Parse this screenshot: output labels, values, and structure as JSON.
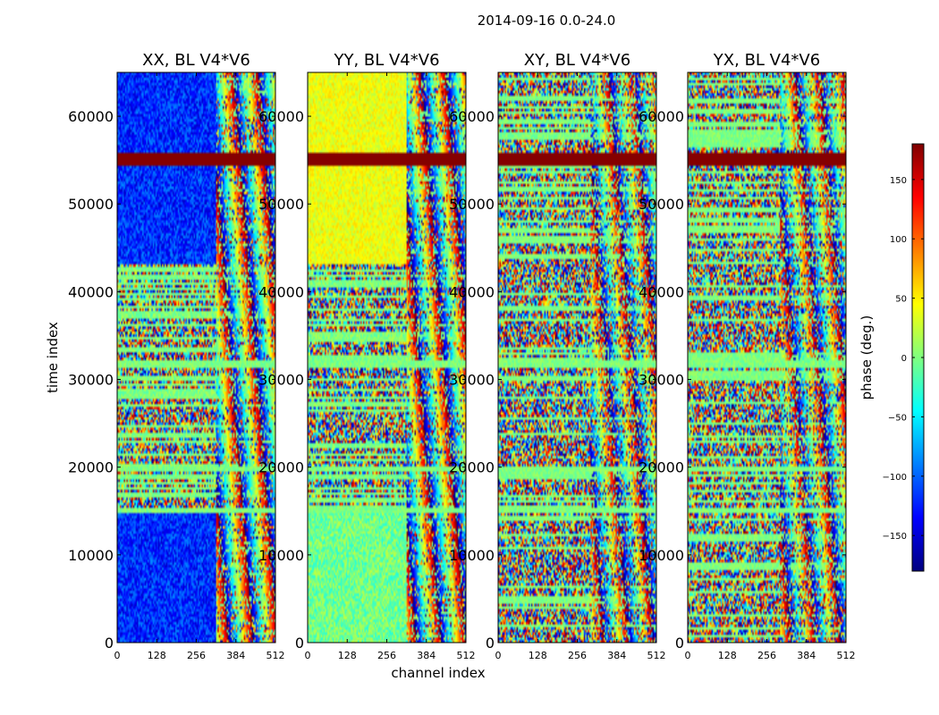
{
  "figure_title": "2014-09-16 0.0-24.0",
  "shared_xlabel": "channel index",
  "shared_ylabel": "time index",
  "colorbar": {
    "label": "phase (deg.)",
    "range": [
      -180,
      180
    ],
    "ticks": [
      150,
      100,
      50,
      0,
      -50,
      -100,
      -150
    ],
    "tick_labels": [
      "150",
      "100",
      "50",
      "0",
      "−50",
      "−100",
      "−150"
    ],
    "colormap": [
      "#00007f",
      "#0000ff",
      "#007fff",
      "#00ffff",
      "#7fff7f",
      "#ffff00",
      "#ff7f00",
      "#ff0000",
      "#7f0000"
    ]
  },
  "chart_data": [
    {
      "type": "heatmap",
      "title": "XX, BL V4*V6",
      "xlabel": "channel index",
      "ylabel": "time index",
      "xlim": [
        0,
        512
      ],
      "ylim": [
        0,
        65000
      ],
      "xticks": [
        0,
        128,
        256,
        384,
        512
      ],
      "xtick_labels": [
        "0",
        "128",
        "256",
        "384",
        "512"
      ],
      "yticks": [
        0,
        10000,
        20000,
        30000,
        40000,
        50000,
        60000
      ],
      "ytick_labels": [
        "0",
        "10000",
        "20000",
        "30000",
        "40000",
        "50000",
        "60000"
      ],
      "value_label": "phase (deg.)",
      "dominant_phase": -120,
      "pattern": "strong-negative-low-channels"
    },
    {
      "type": "heatmap",
      "title": "YY, BL V4*V6",
      "xlabel": "channel index",
      "ylabel": "time index",
      "xlim": [
        0,
        512
      ],
      "ylim": [
        0,
        65000
      ],
      "xticks": [
        0,
        128,
        256,
        384,
        512
      ],
      "xtick_labels": [
        "0",
        "128",
        "256",
        "384",
        "512"
      ],
      "yticks": [
        0,
        10000,
        20000,
        30000,
        40000,
        50000,
        60000
      ],
      "ytick_labels": [
        "0",
        "10000",
        "20000",
        "30000",
        "40000",
        "50000",
        "60000"
      ],
      "value_label": "phase (deg.)",
      "dominant_phase": 40,
      "pattern": "positive-upper-band"
    },
    {
      "type": "heatmap",
      "title": "XY, BL V4*V6",
      "xlabel": "channel index",
      "ylabel": "time index",
      "xlim": [
        0,
        512
      ],
      "ylim": [
        0,
        65000
      ],
      "xticks": [
        0,
        128,
        256,
        384,
        512
      ],
      "xtick_labels": [
        "0",
        "128",
        "256",
        "384",
        "512"
      ],
      "yticks": [
        0,
        10000,
        20000,
        30000,
        40000,
        50000,
        60000
      ],
      "ytick_labels": [
        "0",
        "10000",
        "20000",
        "30000",
        "40000",
        "50000",
        "60000"
      ],
      "value_label": "phase (deg.)",
      "dominant_phase": 0,
      "pattern": "noise"
    },
    {
      "type": "heatmap",
      "title": "YX, BL V4*V6",
      "xlabel": "channel index",
      "ylabel": "time index",
      "xlim": [
        0,
        512
      ],
      "ylim": [
        0,
        65000
      ],
      "xticks": [
        0,
        128,
        256,
        384,
        512
      ],
      "xtick_labels": [
        "0",
        "128",
        "256",
        "384",
        "512"
      ],
      "yticks": [
        0,
        10000,
        20000,
        30000,
        40000,
        50000,
        60000
      ],
      "ytick_labels": [
        "0",
        "10000",
        "20000",
        "30000",
        "40000",
        "50000",
        "60000"
      ],
      "value_label": "phase (deg.)",
      "dominant_phase": 0,
      "pattern": "noise"
    }
  ]
}
